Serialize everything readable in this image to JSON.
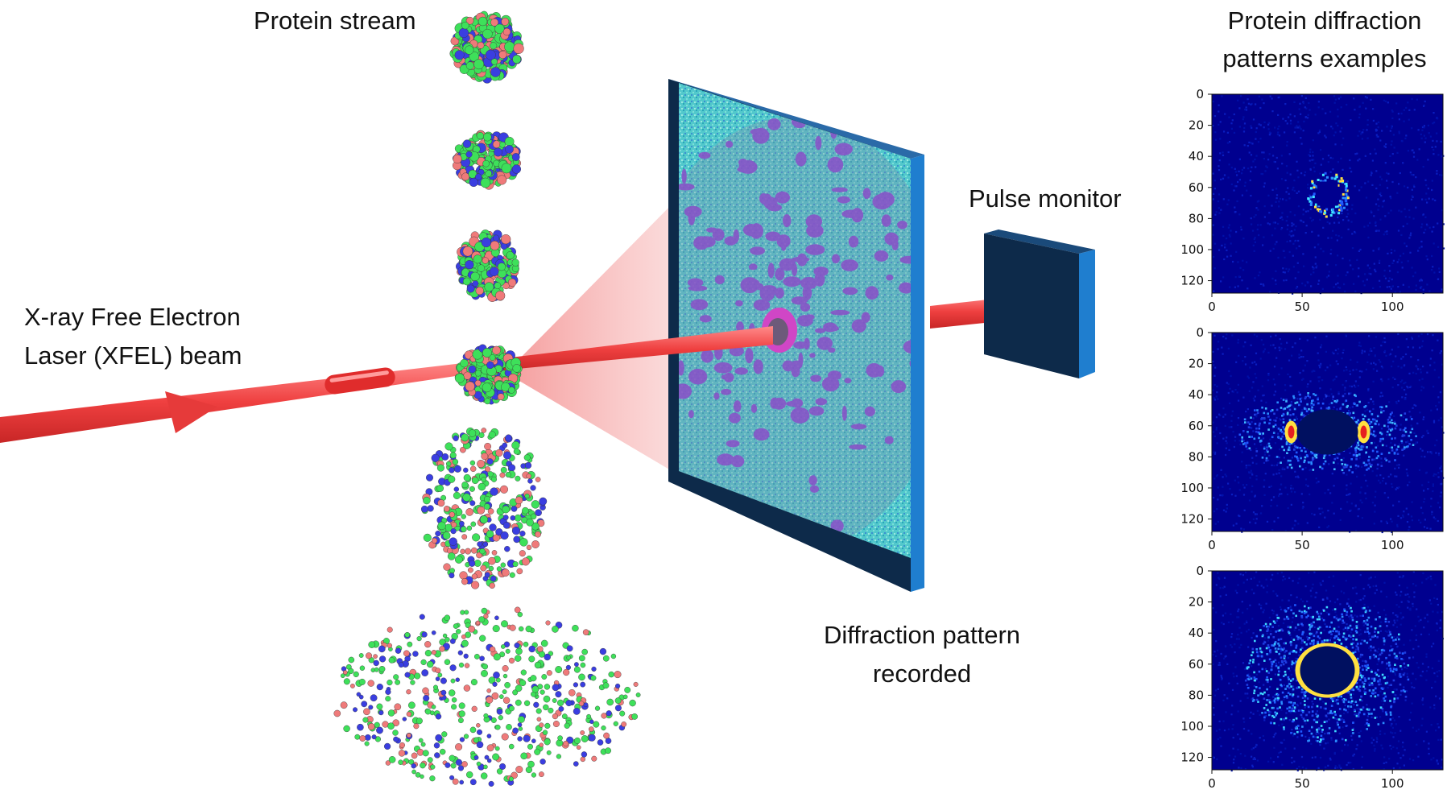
{
  "labels": {
    "protein_stream": "Protein stream",
    "xfel_line1": "X-ray Free Electron",
    "xfel_line2": "Laser (XFEL) beam",
    "pulse_monitor": "Pulse monitor",
    "diffraction_line1": "Diffraction pattern",
    "diffraction_line2": "recorded",
    "examples_line1": "Protein diffraction",
    "examples_line2": "patterns examples"
  },
  "panels": {
    "y_ticks": [
      "0",
      "20",
      "40",
      "60",
      "80",
      "100",
      "120"
    ],
    "x_ticks": [
      "0",
      "50",
      "100"
    ],
    "items": [
      {
        "name": "panel-1",
        "pattern": "small ring with speckles"
      },
      {
        "name": "panel-2",
        "pattern": "bright side lobes"
      },
      {
        "name": "panel-3",
        "pattern": "broad four-lobe halo"
      }
    ]
  },
  "colors": {
    "beam": "#ef4a4a",
    "detector_frame": "#0d2a4a",
    "detector_side": "#1f7ecf",
    "atom_green": "#3ee05a",
    "atom_red": "#ef7a7a",
    "atom_blue": "#3a3ee0",
    "heatmap_bg": "#00008f"
  }
}
